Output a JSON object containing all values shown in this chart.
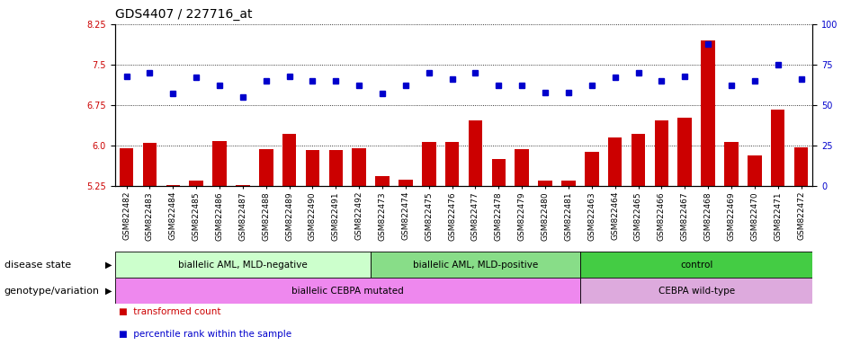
{
  "title": "GDS4407 / 227716_at",
  "samples": [
    "GSM822482",
    "GSM822483",
    "GSM822484",
    "GSM822485",
    "GSM822486",
    "GSM822487",
    "GSM822488",
    "GSM822489",
    "GSM822490",
    "GSM822491",
    "GSM822492",
    "GSM822473",
    "GSM822474",
    "GSM822475",
    "GSM822476",
    "GSM822477",
    "GSM822478",
    "GSM822479",
    "GSM822480",
    "GSM822481",
    "GSM822463",
    "GSM822464",
    "GSM822465",
    "GSM822466",
    "GSM822467",
    "GSM822468",
    "GSM822469",
    "GSM822470",
    "GSM822471",
    "GSM822472"
  ],
  "bar_values": [
    5.95,
    6.05,
    5.27,
    5.36,
    6.08,
    5.28,
    5.93,
    6.22,
    5.92,
    5.92,
    5.95,
    5.44,
    5.38,
    6.07,
    6.07,
    6.47,
    5.76,
    5.94,
    5.36,
    5.36,
    5.88,
    6.15,
    6.22,
    6.47,
    6.52,
    7.95,
    6.07,
    5.82,
    6.67,
    5.97
  ],
  "dot_values": [
    68,
    70,
    57,
    67,
    62,
    55,
    65,
    68,
    65,
    65,
    62,
    57,
    62,
    70,
    66,
    70,
    62,
    62,
    58,
    58,
    62,
    67,
    70,
    65,
    68,
    88,
    62,
    65,
    75,
    66
  ],
  "bar_color": "#cc0000",
  "dot_color": "#0000cc",
  "ylim_left": [
    5.25,
    8.25
  ],
  "ylim_right": [
    0,
    100
  ],
  "yticks_left": [
    5.25,
    6.0,
    6.75,
    7.5,
    8.25
  ],
  "yticks_right": [
    0,
    25,
    50,
    75,
    100
  ],
  "groups": {
    "disease_state": [
      {
        "label": "biallelic AML, MLD-negative",
        "start": 0,
        "end": 10,
        "color": "#ccffcc"
      },
      {
        "label": "biallelic AML, MLD-positive",
        "start": 11,
        "end": 19,
        "color": "#88dd88"
      },
      {
        "label": "control",
        "start": 20,
        "end": 29,
        "color": "#44cc44"
      }
    ],
    "genotype": [
      {
        "label": "biallelic CEBPA mutated",
        "start": 0,
        "end": 19,
        "color": "#ee88ee"
      },
      {
        "label": "CEBPA wild-type",
        "start": 20,
        "end": 29,
        "color": "#ddaadd"
      }
    ]
  },
  "group_label_disease": "disease state",
  "group_label_genotype": "genotype/variation",
  "legend_bar_label": "transformed count",
  "legend_dot_label": "percentile rank within the sample",
  "title_fontsize": 10,
  "tick_fontsize": 7,
  "label_fontsize": 7.5
}
